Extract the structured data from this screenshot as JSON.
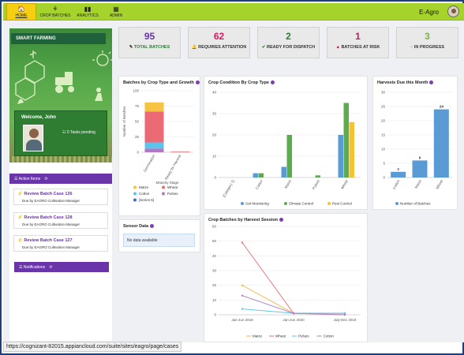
{
  "nav": [
    {
      "label": "HOME",
      "icon": "🏠"
    },
    {
      "label": "CROP BATCHES",
      "icon": "⚘"
    },
    {
      "label": "ANALYTICS",
      "icon": "▮▮"
    },
    {
      "label": "ADMIN",
      "icon": "▦"
    }
  ],
  "brand": "E-Agro",
  "hero": {
    "label": "SMART FARMING",
    "welcome": "Welcome, John",
    "tasks": "0 Tasks pending"
  },
  "action_items": {
    "title": "Action Items",
    "items": [
      {
        "title": "Review Batch Case 136",
        "sub": "Due by EAGRO Cultivation Manager"
      },
      {
        "title": "Review Batch Case 128",
        "sub": "Due by EAGRO Cultivation Manager"
      },
      {
        "title": "Review Batch Case 127",
        "sub": "Due by EAGRO Cultivation Manager"
      }
    ]
  },
  "notifications": {
    "title": "Notifications"
  },
  "kpis": [
    {
      "value": "95",
      "label": "TOTAL BATCHES",
      "color": "#6a35a8"
    },
    {
      "value": "62",
      "label": "REQUIRES ATTENTION",
      "color": "#d81b60"
    },
    {
      "value": "2",
      "label": "READY FOR DISPATCH",
      "color": "#2e7d32"
    },
    {
      "value": "1",
      "label": "BATCHES AT RISK",
      "color": "#c2185b"
    },
    {
      "value": "3",
      "label": "IN PROGRESS",
      "color": "#7cb342"
    }
  ],
  "sensor": {
    "title": "Sensor Data",
    "empty": "No data available"
  },
  "status_url": "https://cognizant-82015.appiancloud.com/suite/sites/eagro/page/cases",
  "chart_data": [
    {
      "type": "bar",
      "stacked": true,
      "title": "Batches by Crop Type and Growth",
      "xlabel": "Maturity Stage",
      "ylabel": "Number of Batches",
      "categories": [
        "Germination",
        "Ready for Harvest"
      ],
      "ylim": [
        0,
        100
      ],
      "yticks": [
        0,
        25,
        50,
        75,
        100
      ],
      "series": [
        {
          "name": "Maize",
          "color": "#f6c343",
          "values": [
            15,
            0
          ]
        },
        {
          "name": "Wheat",
          "color": "#ec6a75",
          "values": [
            50,
            1
          ]
        },
        {
          "name": "Cotton",
          "color": "#5bc3ec",
          "values": [
            10,
            0
          ]
        },
        {
          "name": "Pulses",
          "color": "#b07ac2",
          "values": [
            6,
            0
          ]
        },
        {
          "name": "[Series 5]",
          "color": "#3b6fc2",
          "values": [
            0,
            0
          ]
        }
      ]
    },
    {
      "type": "bar",
      "title": "Crop Condition By Crop Type",
      "categories": [
        "[Category 1]",
        "Cotton",
        "Maize",
        "Pulses",
        "Wheat"
      ],
      "ylim": [
        0,
        40
      ],
      "yticks": [
        0,
        10,
        20,
        30,
        40
      ],
      "series": [
        {
          "name": "Soil Monitoring",
          "color": "#5b9bd5",
          "values": [
            0,
            2,
            5,
            0,
            20
          ]
        },
        {
          "name": "Climate Control",
          "color": "#5cab4e",
          "values": [
            0,
            2,
            20,
            1,
            35
          ]
        },
        {
          "name": "Pest Control",
          "color": "#f3c431",
          "values": [
            0,
            0,
            0,
            0,
            26
          ]
        }
      ]
    },
    {
      "type": "bar",
      "title": "Harvests Due this Month",
      "categories": [
        "Cotton",
        "Maize",
        "Wheat"
      ],
      "ylim": [
        0,
        30
      ],
      "yticks": [
        0,
        5,
        10,
        15,
        20,
        25,
        30
      ],
      "series": [
        {
          "name": "Number of Batches",
          "color": "#5b9bd5",
          "values": [
            2,
            6,
            24
          ]
        }
      ]
    },
    {
      "type": "line",
      "title": "Crop Batches by Harvest Session",
      "categories": [
        "Jan-Jun 2019",
        "Jan-Jun 2020",
        "July-Dec 2019"
      ],
      "ylim": [
        0,
        60
      ],
      "yticks": [
        0,
        10,
        20,
        30,
        40,
        50,
        60
      ],
      "series": [
        {
          "name": "Maize",
          "color": "#f3b444",
          "values": [
            20,
            1,
            0
          ]
        },
        {
          "name": "Wheat",
          "color": "#ec6a75",
          "values": [
            49,
            1,
            1
          ]
        },
        {
          "name": "Pulses",
          "color": "#5bc3ec",
          "values": [
            4,
            1,
            1
          ]
        },
        {
          "name": "Cotton",
          "color": "#b07ac2",
          "values": [
            13,
            1,
            0
          ]
        }
      ]
    }
  ]
}
